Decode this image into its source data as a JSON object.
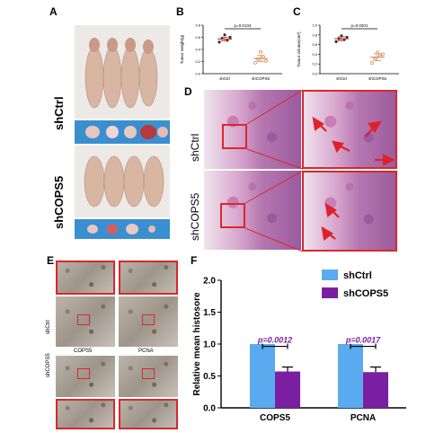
{
  "panels": {
    "A": "A",
    "B": "B",
    "C": "C",
    "D": "D",
    "E": "E",
    "F": "F"
  },
  "panel_a": {
    "row1": "shCtrl",
    "row2": "shCOPS5"
  },
  "panel_d": {
    "row1": "shCtrl",
    "row2": "shCOPS5"
  },
  "panel_e": {
    "row1": "shCtrl",
    "row2": "shCOPS5",
    "col1": "COPS5",
    "col2": "PCNA"
  },
  "colors": {
    "shctrl": "#5aaaf0",
    "shcops5": "#7b1fa2",
    "pvalue": "#7b1fa2",
    "highlight": "#d8282c"
  },
  "chart_data": [
    {
      "id": "B",
      "type": "scatter",
      "ylabel": "Tumor weight(g)",
      "categories": [
        "shCtrl",
        "shCOPS5"
      ],
      "yticks": [
        "0.0",
        "0.2",
        "0.4",
        "0.6",
        "0.8"
      ],
      "ylim": [
        0,
        0.8
      ],
      "annotation": "p=0.0134",
      "series": [
        {
          "name": "shCtrl",
          "values": [
            0.52,
            0.58,
            0.64,
            0.55,
            0.6
          ],
          "mean": 0.57,
          "sem": 0.03
        },
        {
          "name": "shCOPS5",
          "values": [
            0.18,
            0.24,
            0.36,
            0.28,
            0.21
          ],
          "mean": 0.25,
          "sem": 0.05
        }
      ]
    },
    {
      "id": "C",
      "type": "scatter",
      "ylabel": "Tumor volume(cm³)",
      "categories": [
        "shCtrl",
        "shCOPS5"
      ],
      "yticks": [
        "0.0",
        "0.2",
        "0.4",
        "0.6",
        "0.8",
        "1.0"
      ],
      "ylim": [
        0,
        1.0
      ],
      "annotation": "p=0.0201",
      "series": [
        {
          "name": "shCtrl",
          "values": [
            0.66,
            0.72,
            0.78,
            0.7,
            0.75
          ],
          "mean": 0.72,
          "sem": 0.04
        },
        {
          "name": "shCOPS5",
          "values": [
            0.22,
            0.3,
            0.44,
            0.36,
            0.4
          ],
          "mean": 0.34,
          "sem": 0.07
        }
      ]
    },
    {
      "id": "F",
      "type": "bar",
      "ylabel": "Relative mean histosore",
      "categories": [
        "COPS5",
        "PCNA"
      ],
      "yticks": [
        "0.0",
        "0.5",
        "1.0",
        "1.5",
        "2.0"
      ],
      "ylim": [
        0,
        2.0
      ],
      "legend": "top-right",
      "series": [
        {
          "name": "shCtrl",
          "values": [
            1.0,
            1.0
          ],
          "errors": [
            0,
            0
          ]
        },
        {
          "name": "shCOPS5",
          "values": [
            0.57,
            0.56
          ],
          "errors": [
            0.07,
            0.08
          ]
        }
      ],
      "annotations": [
        "p=0.0012",
        "p=0.0017"
      ]
    }
  ]
}
